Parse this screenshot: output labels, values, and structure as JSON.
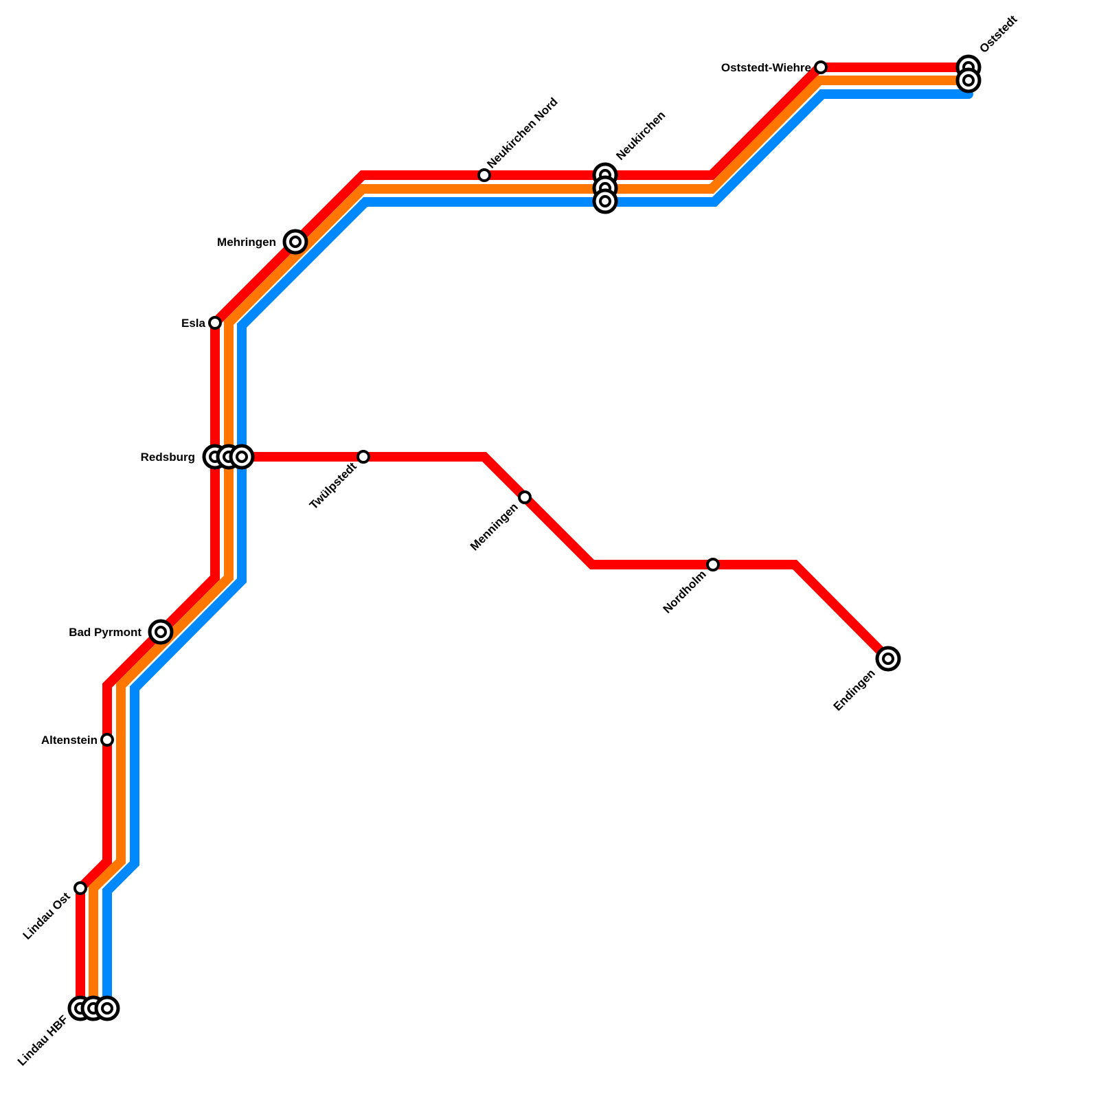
{
  "lines": [
    {
      "name": "red",
      "color": "#ff0000"
    },
    {
      "name": "orange",
      "color": "#ff7700"
    },
    {
      "name": "blue",
      "color": "#0088ff"
    }
  ],
  "stations": {
    "lindau_hbf": "Lindau HBF",
    "lindau_ost": "Lindau  Ost",
    "altenstein": "Altenstein",
    "bad_pyrmont": "Bad Pyrmont",
    "redsburg": "Redsburg",
    "esla": "Esla",
    "mehringen": "Mehringen",
    "neukirchen_nord": "Neukirchen Nord",
    "neukirchen": "Neukirchen",
    "oststedt_wiehre": "Oststedt-Wiehre",
    "oststedt": "Oststedt",
    "twulpstedt": "Twülpstedt",
    "menningen": "Menningen",
    "nordholm": "Nordholm",
    "endingen": "Endingen"
  }
}
